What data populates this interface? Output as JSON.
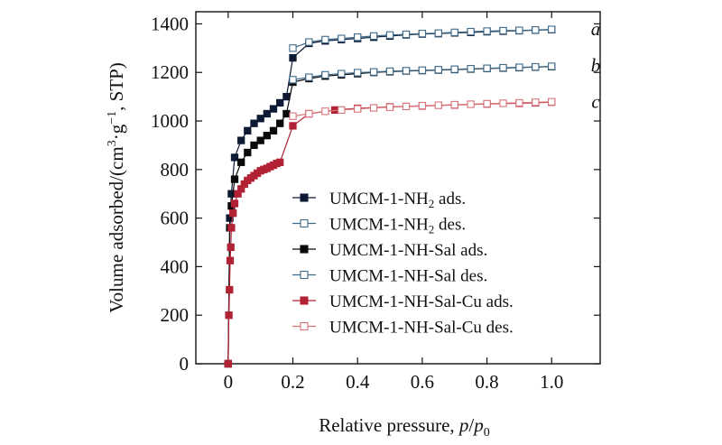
{
  "chart_data": {
    "type": "line",
    "title": "",
    "xlabel_parts": [
      "Relative pressure, ",
      "p",
      "/",
      "p",
      "0"
    ],
    "ylabel_parts": [
      "Volume adsorbed/(cm",
      "3",
      "·g",
      "−1",
      ", STP)"
    ],
    "xlim": [
      -0.1,
      1.15
    ],
    "ylim": [
      0,
      1450
    ],
    "xticks": [
      0,
      0.2,
      0.4,
      0.6,
      0.8,
      1.0
    ],
    "xtick_labels": [
      "0",
      "0.2",
      "0.4",
      "0.6",
      "0.8",
      "1.0"
    ],
    "yticks": [
      0,
      200,
      400,
      600,
      800,
      1000,
      1200,
      1400
    ],
    "ytick_labels": [
      "0",
      "200",
      "400",
      "600",
      "800",
      "1000",
      "1200",
      "1400"
    ],
    "legend_position": "center-right",
    "curve_labels": [
      {
        "text": "a",
        "y": 1380
      },
      {
        "text": "b",
        "y": 1228
      },
      {
        "text": "c",
        "y": 1080
      }
    ],
    "series": [
      {
        "name": "UMCM-1-NH2 ads.",
        "legend_parts": [
          "UMCM-1-NH",
          "2",
          " ads."
        ],
        "color": "#0d1a33",
        "marker": "square-filled",
        "x": [
          0.0,
          0.005,
          0.01,
          0.02,
          0.04,
          0.06,
          0.08,
          0.1,
          0.12,
          0.14,
          0.16,
          0.18,
          0.2,
          0.25,
          0.3,
          0.35,
          0.4,
          0.45,
          0.5,
          0.55,
          0.6,
          0.65,
          0.7,
          0.75,
          0.8,
          0.85,
          0.9,
          0.95,
          1.0
        ],
        "y": [
          0,
          600,
          700,
          850,
          920,
          960,
          990,
          1010,
          1030,
          1050,
          1075,
          1100,
          1260,
          1320,
          1330,
          1335,
          1340,
          1345,
          1350,
          1355,
          1358,
          1360,
          1363,
          1365,
          1368,
          1370,
          1372,
          1374,
          1376
        ]
      },
      {
        "name": "UMCM-1-NH2 des.",
        "legend_parts": [
          "UMCM-1-NH",
          "2",
          " des."
        ],
        "color": "#3e6a8a",
        "marker": "square-open",
        "x": [
          1.0,
          0.95,
          0.9,
          0.85,
          0.8,
          0.75,
          0.7,
          0.65,
          0.6,
          0.55,
          0.5,
          0.45,
          0.4,
          0.35,
          0.3,
          0.25,
          0.2
        ],
        "y": [
          1377,
          1375,
          1373,
          1372,
          1370,
          1368,
          1365,
          1362,
          1360,
          1357,
          1354,
          1350,
          1345,
          1340,
          1335,
          1325,
          1300
        ]
      },
      {
        "name": "UMCM-1-NH-Sal ads.",
        "legend_parts": [
          "UMCM-1-NH-Sal ads."
        ],
        "color": "#0a0a0a",
        "marker": "square-filled",
        "x": [
          0.0,
          0.005,
          0.01,
          0.02,
          0.04,
          0.06,
          0.08,
          0.1,
          0.12,
          0.14,
          0.16,
          0.18,
          0.2,
          0.25,
          0.3,
          0.35,
          0.4,
          0.45,
          0.5,
          0.55,
          0.6,
          0.65,
          0.7,
          0.75,
          0.8,
          0.85,
          0.9,
          0.95,
          1.0
        ],
        "y": [
          0,
          560,
          650,
          760,
          830,
          870,
          900,
          920,
          940,
          960,
          990,
          1030,
          1160,
          1175,
          1185,
          1190,
          1195,
          1200,
          1203,
          1206,
          1208,
          1210,
          1212,
          1214,
          1216,
          1218,
          1220,
          1222,
          1224
        ]
      },
      {
        "name": "UMCM-1-NH-Sal des.",
        "legend_parts": [
          "UMCM-1-NH-Sal des."
        ],
        "color": "#3e6a8a",
        "marker": "square-open",
        "x": [
          1.0,
          0.95,
          0.9,
          0.85,
          0.8,
          0.75,
          0.7,
          0.65,
          0.6,
          0.55,
          0.5,
          0.45,
          0.4,
          0.35,
          0.3,
          0.25,
          0.2
        ],
        "y": [
          1225,
          1223,
          1221,
          1219,
          1217,
          1215,
          1213,
          1211,
          1209,
          1207,
          1205,
          1202,
          1199,
          1195,
          1190,
          1180,
          1170
        ]
      },
      {
        "name": "UMCM-1-NH-Sal-Cu ads.",
        "legend_parts": [
          "UMCM-1-NH-Sal-Cu ads."
        ],
        "color": "#b22234",
        "marker": "square-filled",
        "x": [
          0.0,
          0.002,
          0.004,
          0.006,
          0.008,
          0.01,
          0.015,
          0.02,
          0.03,
          0.04,
          0.05,
          0.06,
          0.07,
          0.08,
          0.09,
          0.1,
          0.11,
          0.12,
          0.13,
          0.14,
          0.15,
          0.16,
          0.2,
          0.25,
          0.33,
          0.4,
          0.5,
          0.6,
          0.7,
          0.8,
          0.9,
          0.95,
          1.0
        ],
        "y": [
          0,
          200,
          305,
          425,
          480,
          560,
          620,
          660,
          700,
          720,
          740,
          755,
          765,
          775,
          785,
          795,
          800,
          805,
          812,
          818,
          825,
          830,
          980,
          1030,
          1045,
          1052,
          1058,
          1062,
          1066,
          1070,
          1073,
          1075,
          1078
        ]
      },
      {
        "name": "UMCM-1-NH-Sal-Cu des.",
        "legend_parts": [
          "UMCM-1-NH-Sal-Cu des."
        ],
        "color": "#d9737a",
        "marker": "square-open",
        "x": [
          1.0,
          0.95,
          0.9,
          0.85,
          0.8,
          0.75,
          0.7,
          0.65,
          0.6,
          0.55,
          0.5,
          0.45,
          0.4,
          0.35,
          0.3,
          0.25,
          0.2
        ],
        "y": [
          1079,
          1077,
          1075,
          1073,
          1071,
          1069,
          1067,
          1065,
          1063,
          1060,
          1057,
          1054,
          1050,
          1045,
          1040,
          1030,
          1020
        ]
      }
    ]
  }
}
